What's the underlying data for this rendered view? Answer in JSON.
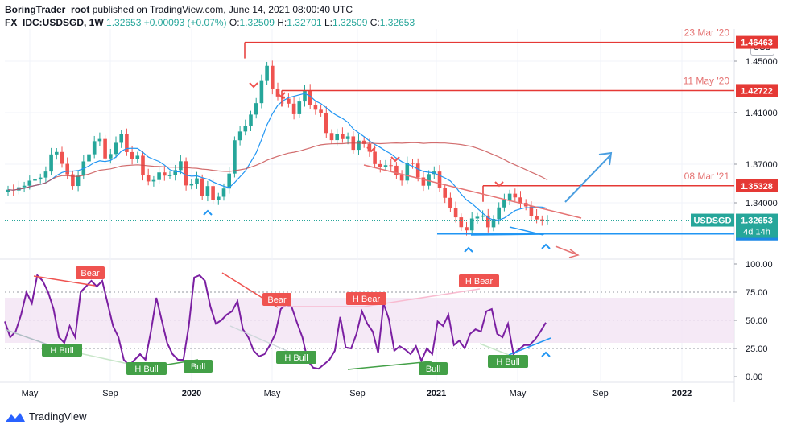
{
  "header": {
    "author": "BoringTrader_root",
    "published": "published on TradingView.com, June 14, 2021 08:00:40 UTC",
    "symbol": "FX_IDC:USDSGD, 1W",
    "last": "1.32653",
    "change": "+0.00093 (+0.07%)",
    "o_label": "O:",
    "o": "1.32509",
    "h_label": "H:",
    "h": "1.32701",
    "l_label": "L:",
    "l": "1.32509",
    "c_label": "C:",
    "c": "1.32653"
  },
  "currency_badge": "SGD",
  "footer": {
    "brand": "TradingView"
  },
  "colors": {
    "up": "#26a69a",
    "down": "#ef5350",
    "ma_fast": "#2196f3",
    "ma_slow": "#c7484a",
    "level": "#e53935",
    "support": "#2196f3",
    "oscillator": "#7b1fa2",
    "band": "#f3e5f5",
    "bear": "#ef5350",
    "bull": "#43a047",
    "last_price": "#26a69a"
  },
  "chart_data": [
    {
      "type": "candlestick",
      "title": "FX_IDC:USDSGD, 1W",
      "ylim": [
        1.3,
        1.475
      ],
      "y_ticks": [
        "1.45000",
        "1.41000",
        "1.37000",
        "1.34000"
      ],
      "x_ticks": [
        "May",
        "Sep",
        "2020",
        "May",
        "Sep",
        "2021",
        "May",
        "Sep",
        "2022"
      ],
      "close_series": [
        1.3502,
        1.3496,
        1.3521,
        1.3533,
        1.3572,
        1.3581,
        1.3596,
        1.3643,
        1.3776,
        1.3795,
        1.3703,
        1.3621,
        1.3531,
        1.3611,
        1.3722,
        1.3777,
        1.3879,
        1.3896,
        1.3745,
        1.3779,
        1.3866,
        1.3937,
        1.3794,
        1.3738,
        1.3766,
        1.3614,
        1.3566,
        1.3577,
        1.3636,
        1.3611,
        1.3613,
        1.3654,
        1.3723,
        1.3535,
        1.3547,
        1.359,
        1.3452,
        1.353,
        1.3423,
        1.3447,
        1.3511,
        1.3627,
        1.3886,
        1.3954,
        1.3996,
        1.4085,
        1.4174,
        1.4346,
        1.4464,
        1.4283,
        1.4226,
        1.4209,
        1.417,
        1.4088,
        1.4187,
        1.4273,
        1.4157,
        1.4123,
        1.4099,
        1.3942,
        1.3887,
        1.3936,
        1.3895,
        1.3916,
        1.3812,
        1.3883,
        1.3857,
        1.3797,
        1.3701,
        1.3675,
        1.3692,
        1.3688,
        1.3615,
        1.3573,
        1.3709,
        1.3705,
        1.3597,
        1.3533,
        1.3623,
        1.3643,
        1.3517,
        1.3439,
        1.3359,
        1.3287,
        1.3211,
        1.3186,
        1.3278,
        1.3291,
        1.3301,
        1.321,
        1.3275,
        1.3364,
        1.3421,
        1.3471,
        1.3442,
        1.3399,
        1.3372,
        1.33,
        1.3271,
        1.3262,
        1.3265
      ],
      "levels": [
        {
          "value": "1.46463",
          "label": "23 Mar '20"
        },
        {
          "value": "1.42722",
          "label": "11 May '20"
        },
        {
          "value": "1.35328",
          "label": "08 Mar '21"
        },
        {
          "value": "1.31578",
          "label": ""
        }
      ],
      "last_price_label": "USDSGD",
      "last_price_value": "1.32653",
      "countdown": "4d 14h",
      "grid": true
    },
    {
      "type": "line",
      "name": "oscillator",
      "ylim": [
        0,
        100
      ],
      "y_ticks": [
        "100.00",
        "75.00",
        "50.00",
        "25.00",
        "0.00"
      ],
      "band": [
        30,
        70
      ],
      "values": [
        49,
        35,
        40,
        55,
        75,
        65,
        90,
        85,
        75,
        60,
        35,
        30,
        45,
        35,
        75,
        80,
        85,
        80,
        85,
        65,
        45,
        35,
        15,
        10,
        15,
        20,
        15,
        40,
        70,
        50,
        30,
        20,
        15,
        15,
        45,
        88,
        90,
        85,
        62,
        47,
        50,
        55,
        58,
        67,
        42,
        35,
        23,
        18,
        20,
        28,
        38,
        60,
        64,
        62,
        48,
        35,
        14,
        8,
        7,
        11,
        15,
        23,
        53,
        26,
        25,
        38,
        58,
        47,
        40,
        21,
        65,
        51,
        23,
        27,
        24,
        20,
        27,
        14,
        25,
        20,
        49,
        45,
        55,
        28,
        32,
        25,
        38,
        42,
        40,
        58,
        60,
        38,
        35,
        47,
        20,
        24,
        28,
        28,
        33,
        40,
        48
      ],
      "annotations": [
        "Bear",
        "Bear",
        "H Bear",
        "H Bear",
        "H Bull",
        "H Bull",
        "Bull",
        "Bull",
        "H Bull"
      ]
    }
  ]
}
